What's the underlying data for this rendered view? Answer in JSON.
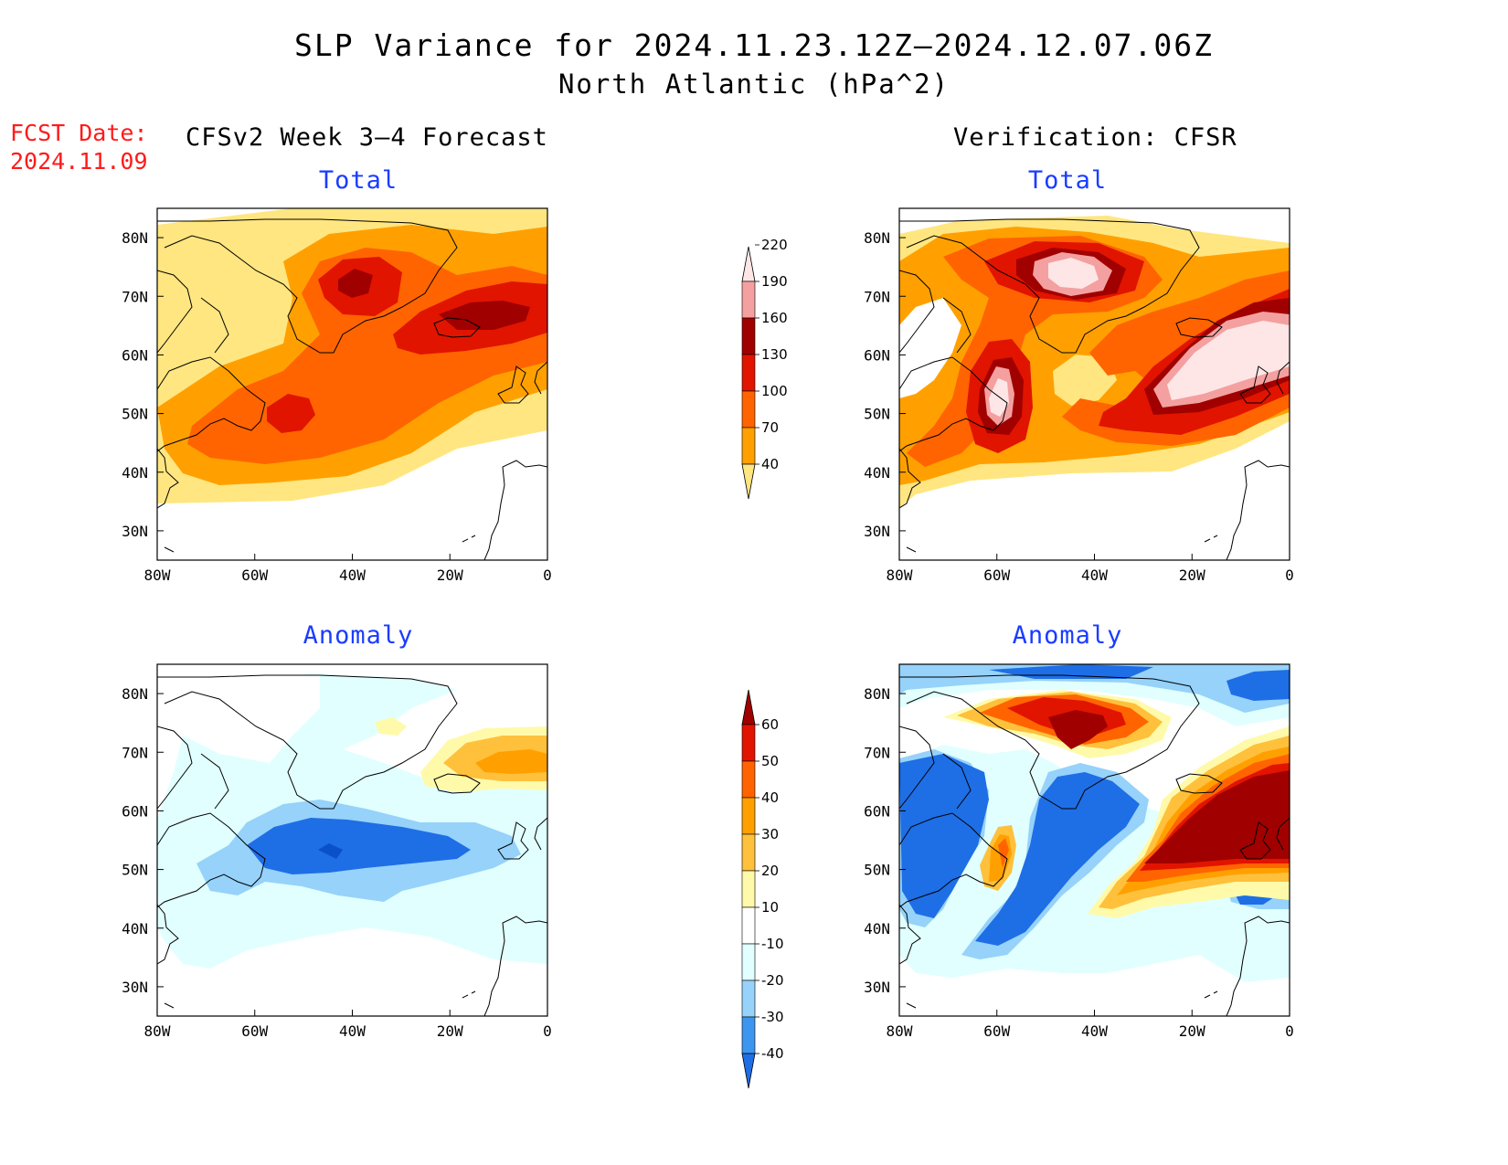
{
  "title": "SLP Variance for 2024.11.23.12Z–2024.12.07.06Z",
  "subtitle": "North Atlantic (hPa^2)",
  "fcst_label": "FCST Date:",
  "fcst_date": "2024.11.09",
  "left_header": "CFSv2 Week 3–4 Forecast",
  "right_header": "Verification: CFSR",
  "panels": {
    "tl": {
      "title": "Total"
    },
    "tr": {
      "title": "Total"
    },
    "bl": {
      "title": "Anomaly"
    },
    "br": {
      "title": "Anomaly"
    }
  },
  "axes": {
    "x_ticks": [
      "80W",
      "60W",
      "40W",
      "20W",
      "0"
    ],
    "y_ticks": [
      "30N",
      "40N",
      "50N",
      "60N",
      "70N",
      "80N"
    ],
    "lon_range": [
      -80,
      0
    ],
    "lat_range": [
      25,
      85
    ]
  },
  "colorbars": {
    "total": {
      "labels": [
        "40",
        "70",
        "100",
        "130",
        "160",
        "190",
        "220"
      ],
      "colors": [
        "#ffe680",
        "#ffa000",
        "#ff6400",
        "#e11400",
        "#a00000",
        "#f4a0a0",
        "#ffe6e6"
      ]
    },
    "anomaly": {
      "labels": [
        "-40",
        "-30",
        "-20",
        "-10",
        "10",
        "20",
        "30",
        "40",
        "50",
        "60"
      ],
      "colors": [
        "#1e6ee6",
        "#3c96f0",
        "#96d2fa",
        "#e1ffff",
        "#ffffff",
        "#fffaaa",
        "#ffc03c",
        "#ffa000",
        "#ff6400",
        "#e11400",
        "#a00000"
      ]
    }
  }
}
